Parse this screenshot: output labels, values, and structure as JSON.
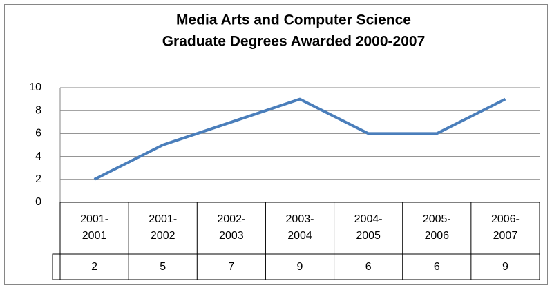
{
  "chart_data": {
    "type": "line",
    "title": [
      "Media Arts and Computer Science",
      "Graduate Degrees Awarded 2000-2007"
    ],
    "categories": [
      "2001-2001",
      "2001-2002",
      "2002-2003",
      "2003-2004",
      "2004-2005",
      "2005-2006",
      "2006-2007"
    ],
    "values": [
      2,
      5,
      7,
      9,
      6,
      6,
      9
    ],
    "color": "#4a7ebb",
    "ylim": [
      0,
      10
    ],
    "yticks": [
      0,
      2,
      4,
      6,
      8,
      10
    ],
    "grid": true,
    "data_table": true
  }
}
